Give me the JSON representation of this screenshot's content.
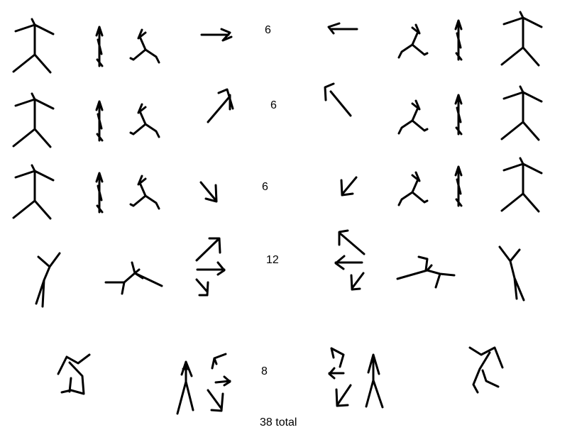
{
  "rows": [
    {
      "count": "6"
    },
    {
      "count": "6"
    },
    {
      "count": "6"
    },
    {
      "count": "12"
    },
    {
      "count": "8"
    }
  ],
  "total": "38 total",
  "colors": {
    "ink": "#000000",
    "background": "#ffffff"
  }
}
